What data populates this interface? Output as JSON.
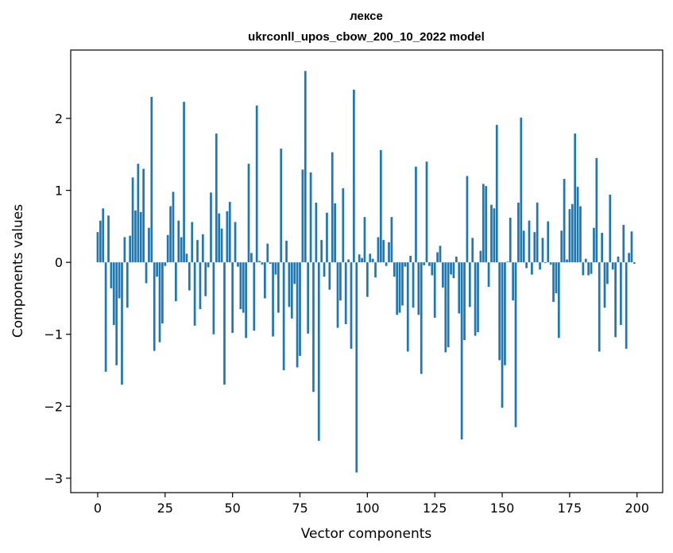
{
  "chart_data": {
    "type": "bar",
    "title_line1": "лексе",
    "title_line2": "ukrconll_upos_cbow_200_10_2022 model",
    "xlabel": "Vector components",
    "ylabel": "Components values",
    "x_ticks": [
      0,
      25,
      50,
      75,
      100,
      125,
      150,
      175,
      200
    ],
    "x_tick_labels": [
      "0",
      "25",
      "50",
      "75",
      "100",
      "125",
      "150",
      "175",
      "200"
    ],
    "y_ticks": [
      -3,
      -2,
      -1,
      0,
      1,
      2
    ],
    "y_tick_labels": [
      "−3",
      "−2",
      "−1",
      "0",
      "1",
      "2"
    ],
    "xlim": [
      -10,
      209.5
    ],
    "ylim": [
      -3.2,
      2.95
    ],
    "grid": false,
    "bar_color": "#1f77b4",
    "values": [
      0.42,
      0.58,
      0.75,
      -1.52,
      0.65,
      -0.36,
      -0.87,
      -1.43,
      -0.5,
      -1.7,
      0.35,
      -0.63,
      0.37,
      1.18,
      0.72,
      1.37,
      0.7,
      1.3,
      -0.29,
      0.48,
      2.3,
      -1.23,
      -0.2,
      -1.11,
      -0.85,
      -0.05,
      0.38,
      0.78,
      0.98,
      -0.54,
      0.58,
      0.35,
      2.23,
      0.12,
      -0.39,
      0.56,
      -0.88,
      0.31,
      -0.65,
      0.39,
      -0.47,
      -0.07,
      0.97,
      -1.0,
      1.79,
      0.68,
      0.47,
      -1.7,
      0.71,
      0.84,
      -0.98,
      0.56,
      -0.06,
      -0.65,
      -0.7,
      -1.05,
      1.37,
      0.13,
      -0.95,
      2.18,
      0.02,
      -0.03,
      -0.5,
      0.26,
      -0.02,
      -1.03,
      -0.17,
      -0.7,
      1.58,
      -1.5,
      0.3,
      -0.62,
      -0.78,
      -0.3,
      -1.46,
      -1.3,
      1.29,
      2.66,
      -0.99,
      1.25,
      -1.8,
      0.83,
      -2.48,
      0.31,
      -0.2,
      0.69,
      -0.38,
      1.53,
      0.82,
      -0.91,
      -0.53,
      1.03,
      -0.86,
      0.04,
      -1.2,
      2.4,
      -2.92,
      0.11,
      0.06,
      0.63,
      -0.48,
      0.12,
      0.05,
      -0.21,
      0.35,
      1.56,
      0.31,
      -0.05,
      0.28,
      0.63,
      -0.2,
      -0.73,
      -0.7,
      -0.6,
      -0.06,
      -1.24,
      0.09,
      -0.63,
      1.33,
      -0.73,
      -1.55,
      -0.04,
      1.4,
      -0.05,
      -0.18,
      -0.77,
      0.14,
      0.23,
      -0.35,
      -1.25,
      -1.18,
      -0.17,
      -0.22,
      0.08,
      -0.71,
      -2.46,
      -1.08,
      1.2,
      -0.62,
      0.34,
      -1.02,
      -0.97,
      0.16,
      1.09,
      1.06,
      -0.34,
      0.8,
      0.75,
      1.91,
      -1.36,
      -2.02,
      -1.43,
      0.01,
      0.62,
      -0.53,
      -2.29,
      0.83,
      2.01,
      0.44,
      -0.08,
      0.58,
      -0.17,
      0.42,
      0.83,
      -0.1,
      0.34,
      -0.01,
      0.57,
      -0.03,
      -0.55,
      -0.43,
      -1.05,
      0.44,
      1.16,
      0.04,
      0.74,
      0.81,
      1.79,
      1.05,
      0.78,
      -0.18,
      0.05,
      -0.18,
      -0.16,
      0.48,
      1.45,
      -1.24,
      0.41,
      -0.63,
      -0.3,
      0.94,
      -0.1,
      -1.04,
      0.08,
      -0.87,
      0.52,
      -1.2,
      0.13,
      0.43,
      -0.02
    ]
  }
}
